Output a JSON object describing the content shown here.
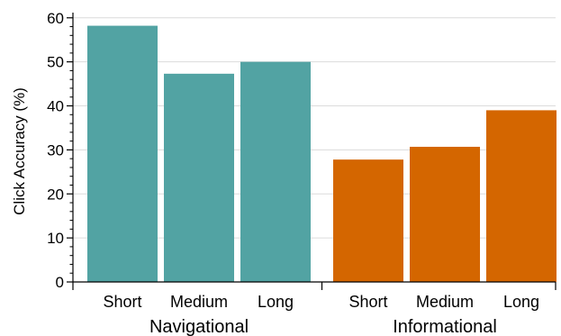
{
  "chart_data": {
    "type": "bar",
    "title": "",
    "xlabel": "",
    "ylabel": "Click Accuracy (%)",
    "ylim": [
      0,
      62
    ],
    "yticks": [
      0,
      10,
      20,
      30,
      40,
      50,
      60
    ],
    "grid": true,
    "legend": "none",
    "groups": [
      {
        "name": "Navigational",
        "color": "#52a3a3",
        "categories": [
          "Short",
          "Medium",
          "Long"
        ],
        "values": [
          58.2,
          47.3,
          50.0
        ]
      },
      {
        "name": "Informational",
        "color": "#d46600",
        "categories": [
          "Short",
          "Medium",
          "Long"
        ],
        "values": [
          27.8,
          30.7,
          39.0
        ]
      }
    ]
  }
}
